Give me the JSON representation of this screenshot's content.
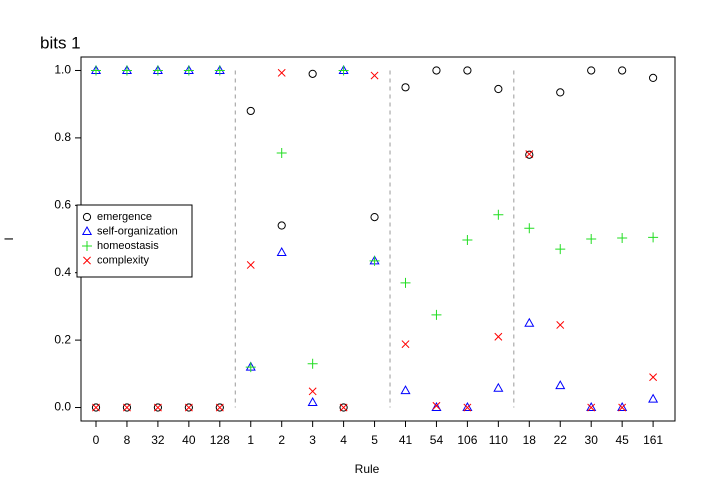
{
  "chart_data": {
    "type": "scatter",
    "title": "bits  1",
    "x_label": "Rule",
    "y_label": "I",
    "categories": [
      "0",
      "8",
      "32",
      "40",
      "128",
      "1",
      "2",
      "3",
      "4",
      "5",
      "41",
      "54",
      "106",
      "110",
      "18",
      "22",
      "30",
      "45",
      "161"
    ],
    "series": [
      {
        "name": "emergence",
        "color": "#000000",
        "marker": "circle",
        "values": [
          0,
          0,
          0,
          0,
          0,
          0.88,
          0.54,
          0.99,
          0,
          0.565,
          0.95,
          1.0,
          1.0,
          0.945,
          0.75,
          0.935,
          1.0,
          1.0,
          0.978
        ]
      },
      {
        "name": "self-organization",
        "color": "#0000ff",
        "marker": "triangle",
        "values": [
          1.0,
          1.0,
          1.0,
          1.0,
          1.0,
          0.12,
          0.46,
          0.015,
          1.0,
          0.435,
          0.05,
          0,
          0,
          0.057,
          0.25,
          0.065,
          0,
          0,
          0.025
        ]
      },
      {
        "name": "homeostasis",
        "color": "#22dd22",
        "marker": "plus",
        "values": [
          1.0,
          1.0,
          1.0,
          1.0,
          1.0,
          0.12,
          0.755,
          0.13,
          1.0,
          0.435,
          0.37,
          0.275,
          0.497,
          0.572,
          0.532,
          0.47,
          0.5,
          0.503,
          0.505
        ]
      },
      {
        "name": "complexity",
        "color": "#ff0000",
        "marker": "cross",
        "values": [
          0,
          0,
          0,
          0,
          0,
          0.423,
          0.993,
          0.048,
          0,
          0.985,
          0.188,
          0.005,
          0,
          0.21,
          0.752,
          0.245,
          0,
          0,
          0.09
        ]
      }
    ],
    "ylim": [
      -0.04,
      1.04
    ],
    "yticks": [
      {
        "value": 0,
        "label": "0.0"
      },
      {
        "value": 0.2,
        "label": "0.2"
      },
      {
        "value": 0.4,
        "label": "0.4"
      },
      {
        "value": 0.6,
        "label": "0.6"
      },
      {
        "value": 0.8,
        "label": "0.8"
      },
      {
        "value": 1,
        "label": "1.0"
      }
    ],
    "legend": "left"
  }
}
